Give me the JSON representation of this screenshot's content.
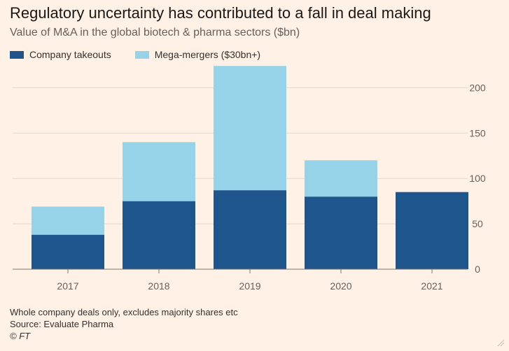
{
  "title": "Regulatory uncertainty has contributed to a fall in deal making",
  "subtitle": "Value of M&A in the global biotech & pharma sectors ($bn)",
  "colors": {
    "takeouts": "#1e558c",
    "mega": "#96d2e8",
    "grid": "#e3d8cc",
    "axis": "#7d7670"
  },
  "chart_data": {
    "type": "bar",
    "stacked": true,
    "categories": [
      "2017",
      "2018",
      "2019",
      "2020",
      "2021"
    ],
    "series": [
      {
        "name": "Company takeouts",
        "values": [
          38,
          75,
          87,
          80,
          85
        ]
      },
      {
        "name": "Mega-mergers ($30bn+)",
        "values": [
          31,
          65,
          137,
          40,
          0
        ]
      }
    ],
    "ylim": [
      0,
      225
    ],
    "yticks": [
      0,
      50,
      100,
      150,
      200
    ],
    "ytick_labels": [
      "0",
      "50",
      "100",
      "150",
      "200"
    ],
    "y_axis_position": "right",
    "grid": true,
    "legend_position": "top-left"
  },
  "footer": {
    "note": "Whole company deals only, excludes majority shares etc",
    "source": "Source: Evaluate Pharma",
    "copyright": "© FT"
  }
}
